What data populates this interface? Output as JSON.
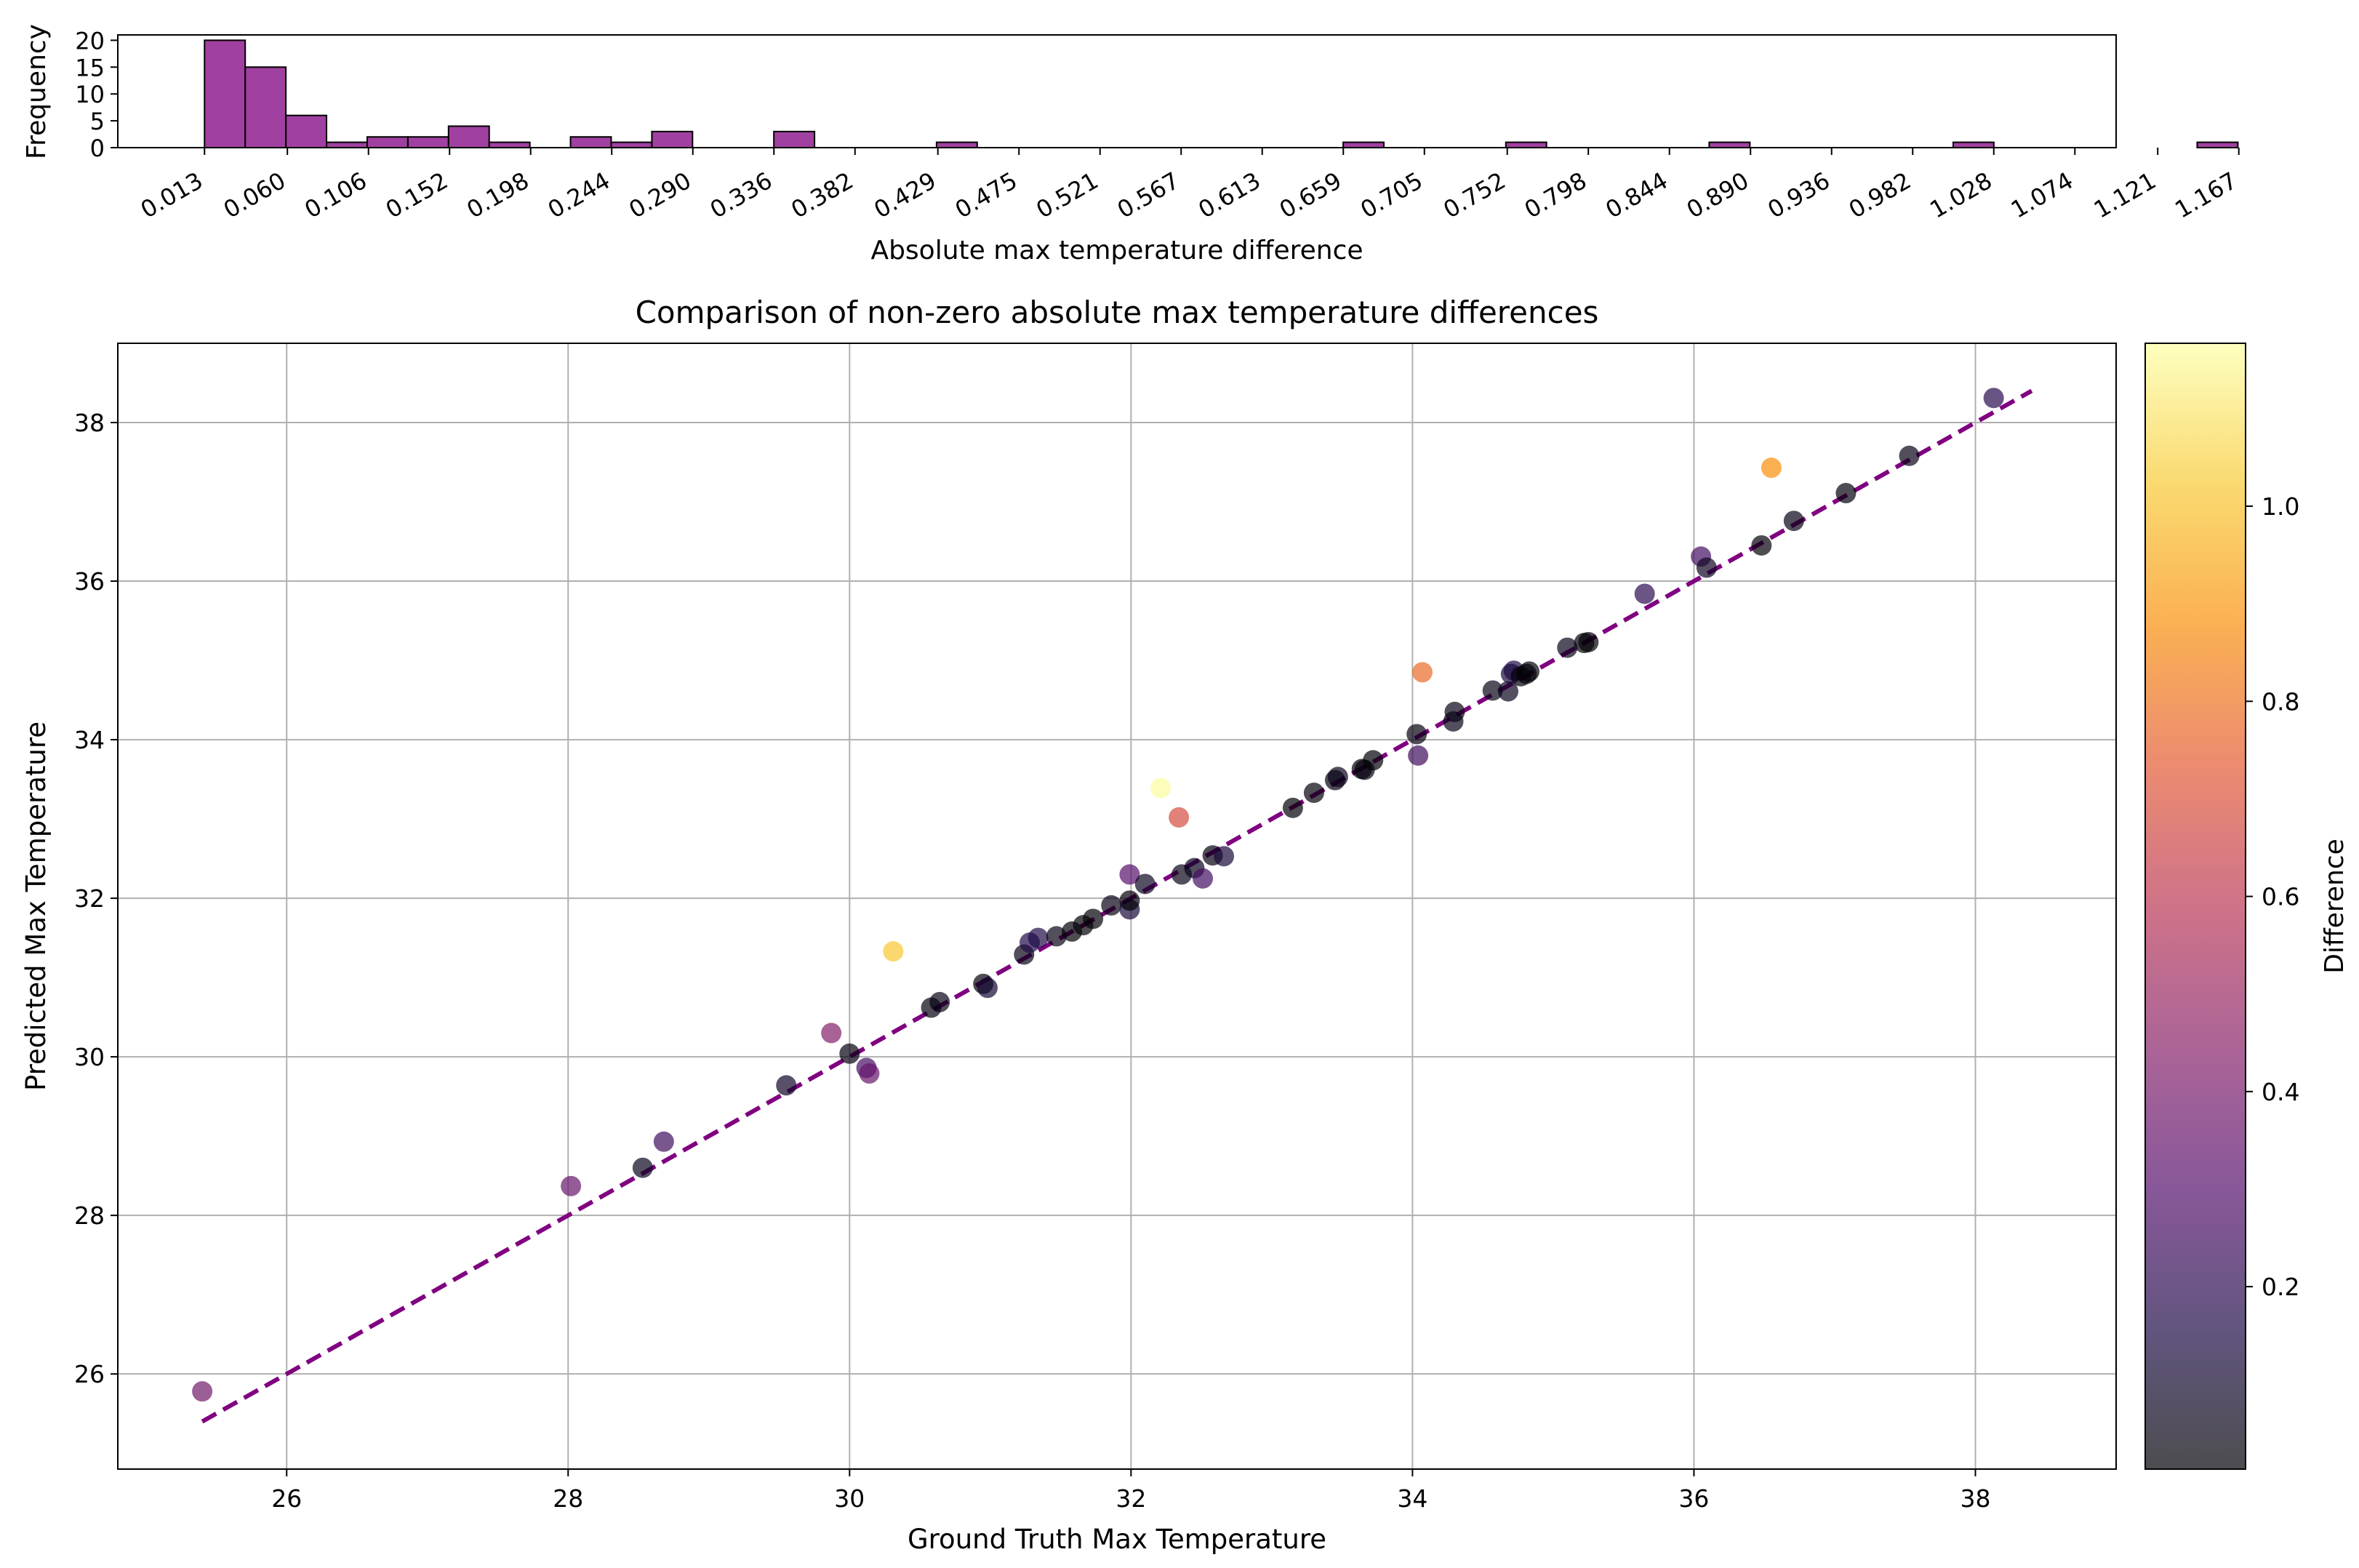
{
  "chart_data": [
    {
      "type": "bar",
      "title": "",
      "xlabel": "Absolute max temperature difference",
      "ylabel": "Frequency",
      "bar_color": "#800080",
      "bar_alpha": 0.75,
      "bin_start": 0.013,
      "bin_width": 0.023069,
      "xlim": [
        -0.0362,
        1.0974
      ],
      "ylim": [
        0,
        21
      ],
      "yticks": [
        0,
        5,
        10,
        15,
        20
      ],
      "xticks": [
        "0.013",
        "0.060",
        "0.106",
        "0.152",
        "0.198",
        "0.244",
        "0.290",
        "0.336",
        "0.382",
        "0.429",
        "0.475",
        "0.521",
        "0.567",
        "0.613",
        "0.659",
        "0.705",
        "0.752",
        "0.798",
        "0.844",
        "0.890",
        "0.936",
        "0.982",
        "1.028",
        "1.074",
        "1.121",
        "1.167"
      ],
      "xtick_values": [
        0.013,
        0.06,
        0.106,
        0.152,
        0.198,
        0.244,
        0.29,
        0.336,
        0.382,
        0.429,
        0.475,
        0.521,
        0.567,
        0.613,
        0.659,
        0.705,
        0.752,
        0.798,
        0.844,
        0.89,
        0.936,
        0.982,
        1.028,
        1.074,
        1.121,
        1.167
      ],
      "counts": [
        20,
        15,
        6,
        1,
        2,
        2,
        4,
        1,
        0,
        2,
        1,
        3,
        0,
        0,
        3,
        0,
        0,
        0,
        1,
        0,
        0,
        0,
        0,
        0,
        0,
        0,
        0,
        0,
        1,
        0,
        0,
        0,
        1,
        0,
        0,
        0,
        0,
        1,
        0,
        0,
        0,
        0,
        0,
        1,
        0,
        0,
        0,
        0,
        0,
        1
      ],
      "grid": false
    },
    {
      "type": "scatter",
      "title": "Comparison of non-zero absolute max temperature differences",
      "xlabel": "Ground Truth Max Temperature",
      "ylabel": "Predicted Max Temperature",
      "xlim": [
        24.8,
        39.0
      ],
      "ylim": [
        24.8,
        39.0
      ],
      "xticks": [
        26,
        28,
        30,
        32,
        34,
        36,
        38
      ],
      "yticks": [
        26,
        28,
        30,
        32,
        34,
        36,
        38
      ],
      "grid": true,
      "colormap": "inferno",
      "point_alpha": 0.7,
      "reference_line": {
        "x": [
          25.4,
          38.4
        ],
        "y": [
          25.4,
          38.4
        ],
        "color": "#800080",
        "style": "dashed"
      },
      "colorbar": {
        "label": "Difference",
        "ticks": [
          0.2,
          0.4,
          0.6,
          0.8,
          1.0
        ],
        "tick_labels": [
          "0.2",
          "0.4",
          "0.6",
          "0.8",
          "1.0"
        ],
        "range": [
          0.013,
          1.167
        ]
      },
      "points": [
        [
          25.4,
          25.78,
          0.38
        ],
        [
          28.02,
          28.37,
          0.35
        ],
        [
          28.53,
          28.6,
          0.07
        ],
        [
          28.68,
          28.93,
          0.25
        ],
        [
          29.55,
          29.64,
          0.09
        ],
        [
          29.87,
          30.3,
          0.43
        ],
        [
          30.0,
          30.04,
          0.04
        ],
        [
          30.12,
          29.86,
          0.26
        ],
        [
          30.14,
          29.79,
          0.35
        ],
        [
          30.31,
          31.33,
          1.02
        ],
        [
          30.58,
          30.62,
          0.04
        ],
        [
          30.64,
          30.69,
          0.05
        ],
        [
          30.95,
          30.92,
          0.03
        ],
        [
          30.98,
          30.87,
          0.11
        ],
        [
          31.24,
          31.29,
          0.05
        ],
        [
          31.28,
          31.44,
          0.16
        ],
        [
          31.34,
          31.5,
          0.16
        ],
        [
          31.47,
          31.52,
          0.05
        ],
        [
          31.58,
          31.58,
          0.02
        ],
        [
          31.66,
          31.66,
          0.02
        ],
        [
          31.73,
          31.74,
          0.02
        ],
        [
          31.86,
          31.91,
          0.05
        ],
        [
          31.99,
          32.3,
          0.31
        ],
        [
          31.99,
          31.86,
          0.13
        ],
        [
          31.99,
          31.97,
          0.02
        ],
        [
          32.1,
          32.18,
          0.08
        ],
        [
          32.21,
          33.39,
          1.16
        ],
        [
          32.34,
          33.02,
          0.68
        ],
        [
          32.36,
          32.3,
          0.06
        ],
        [
          32.45,
          32.38,
          0.07
        ],
        [
          32.51,
          32.25,
          0.26
        ],
        [
          32.58,
          32.54,
          0.04
        ],
        [
          32.66,
          32.53,
          0.13
        ],
        [
          33.15,
          33.14,
          0.02
        ],
        [
          33.3,
          33.33,
          0.03
        ],
        [
          33.45,
          33.49,
          0.04
        ],
        [
          33.47,
          33.53,
          0.06
        ],
        [
          33.64,
          33.63,
          0.02
        ],
        [
          33.66,
          33.62,
          0.04
        ],
        [
          33.72,
          33.74,
          0.02
        ],
        [
          34.03,
          34.07,
          0.04
        ],
        [
          34.04,
          33.8,
          0.24
        ],
        [
          34.07,
          34.85,
          0.78
        ],
        [
          34.29,
          34.23,
          0.06
        ],
        [
          34.3,
          34.35,
          0.05
        ],
        [
          34.57,
          34.62,
          0.05
        ],
        [
          34.68,
          34.61,
          0.07
        ],
        [
          34.7,
          34.83,
          0.13
        ],
        [
          34.72,
          34.87,
          0.15
        ],
        [
          34.77,
          34.8,
          0.03
        ],
        [
          34.81,
          34.83,
          0.02
        ],
        [
          34.83,
          34.86,
          0.03
        ],
        [
          35.1,
          35.16,
          0.06
        ],
        [
          35.22,
          35.22,
          0.02
        ],
        [
          35.25,
          35.23,
          0.02
        ],
        [
          35.65,
          35.84,
          0.19
        ],
        [
          36.05,
          36.31,
          0.26
        ],
        [
          36.09,
          36.17,
          0.08
        ],
        [
          36.48,
          36.45,
          0.03
        ],
        [
          36.55,
          37.43,
          0.88
        ],
        [
          36.71,
          36.76,
          0.05
        ],
        [
          37.08,
          37.11,
          0.03
        ],
        [
          37.53,
          37.58,
          0.05
        ],
        [
          38.13,
          38.31,
          0.18
        ]
      ]
    }
  ]
}
